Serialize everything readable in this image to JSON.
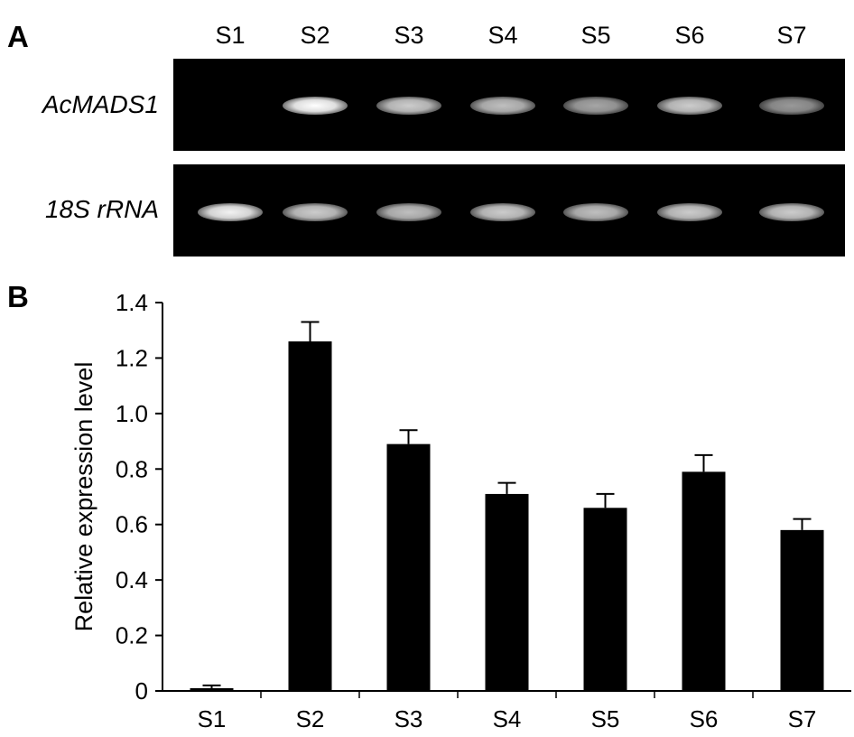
{
  "figure": {
    "panel_a_letter": "A",
    "panel_b_letter": "B"
  },
  "gel": {
    "lanes": [
      "S1",
      "S2",
      "S3",
      "S4",
      "S5",
      "S6",
      "S7"
    ],
    "rows": [
      {
        "label": "AcMADS1",
        "intensity": [
          0.0,
          1.0,
          0.8,
          0.75,
          0.65,
          0.8,
          0.6
        ]
      },
      {
        "label": "18S rRNA",
        "intensity": [
          0.95,
          0.8,
          0.75,
          0.8,
          0.75,
          0.8,
          0.8
        ]
      }
    ],
    "background_color": "#000000",
    "band_color": "#ffffff"
  },
  "chart_data": {
    "type": "bar",
    "categories": [
      "S1",
      "S2",
      "S3",
      "S4",
      "S5",
      "S6",
      "S7"
    ],
    "series": [
      {
        "values": [
          0.01,
          1.26,
          0.89,
          0.71,
          0.66,
          0.79,
          0.58
        ],
        "errors": [
          0.01,
          0.07,
          0.05,
          0.04,
          0.05,
          0.06,
          0.04
        ]
      }
    ],
    "ylabel": "Relative expression level",
    "xlabel": "",
    "ylim": [
      0,
      1.4
    ],
    "yticks": [
      0,
      0.2,
      0.4,
      0.6,
      0.8,
      1.0,
      1.2,
      1.4
    ],
    "ytick_labels": [
      "0",
      "0.2",
      "0.4",
      "0.6",
      "0.8",
      "1.0",
      "1.2",
      "1.4"
    ],
    "bar_color": "#000000",
    "grid": false
  }
}
